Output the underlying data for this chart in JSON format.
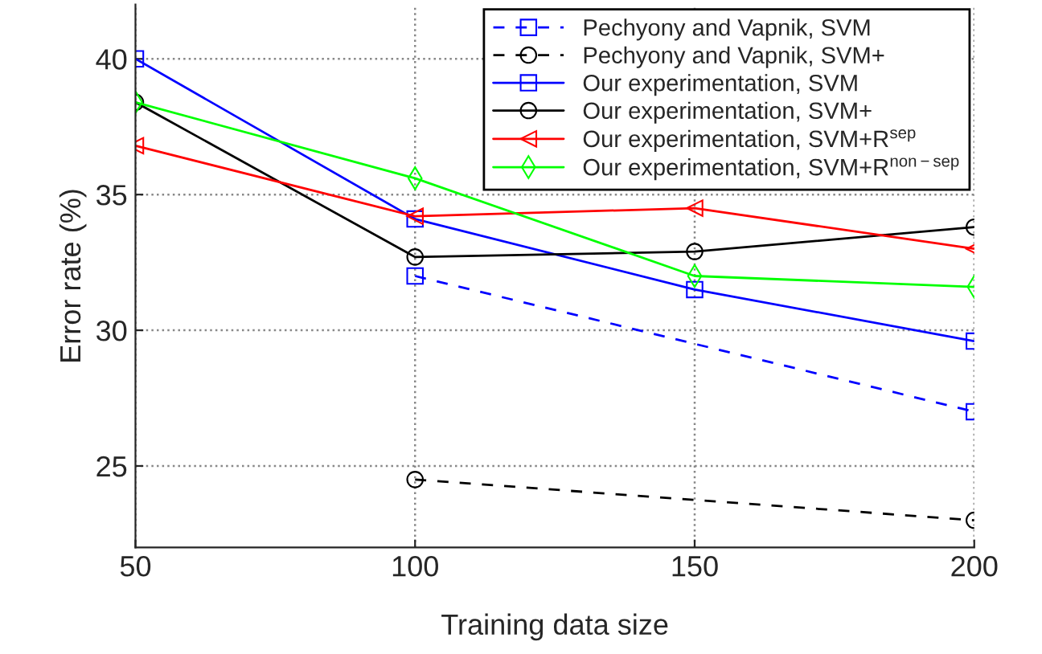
{
  "chart_data": {
    "type": "line",
    "xlabel": "Training data size",
    "ylabel": "Error rate (%)",
    "x": [
      50,
      100,
      150,
      200
    ],
    "xlim": [
      50,
      200
    ],
    "xticks": [
      50,
      100,
      150,
      200
    ],
    "ylim": [
      22,
      42
    ],
    "yticks": [
      25,
      30,
      35,
      40
    ],
    "grid": true,
    "legend": "top right",
    "series": [
      {
        "name": "Pechyony and Vapnik, SVM",
        "color": "#0000ff",
        "marker": "square",
        "line_style": "dashed",
        "values": [
          null,
          32.0,
          null,
          27.0
        ]
      },
      {
        "name": "Pechyony and Vapnik, SVM+",
        "color": "#000000",
        "marker": "circle",
        "line_style": "dashed",
        "values": [
          null,
          24.5,
          null,
          23.0
        ]
      },
      {
        "name": "Our experimentation, SVM",
        "color": "#0000ff",
        "marker": "square",
        "line_style": "solid",
        "values": [
          40.0,
          34.1,
          31.5,
          29.6
        ]
      },
      {
        "name": "Our experimentation, SVM+",
        "color": "#000000",
        "marker": "circle",
        "line_style": "solid",
        "values": [
          38.4,
          32.7,
          32.9,
          33.8
        ]
      },
      {
        "name": "Our experimentation, SVM+R$^{sep}$",
        "color": "#ff0000",
        "marker": "triangle",
        "line_style": "solid",
        "values": [
          36.8,
          34.2,
          34.5,
          33.0
        ]
      },
      {
        "name": "Our experimentation, SVM+R$^{non−sep}$",
        "color": "#00ff00",
        "marker": "diamond",
        "line_style": "solid",
        "values": [
          38.4,
          35.6,
          32.0,
          31.6
        ]
      }
    ]
  }
}
